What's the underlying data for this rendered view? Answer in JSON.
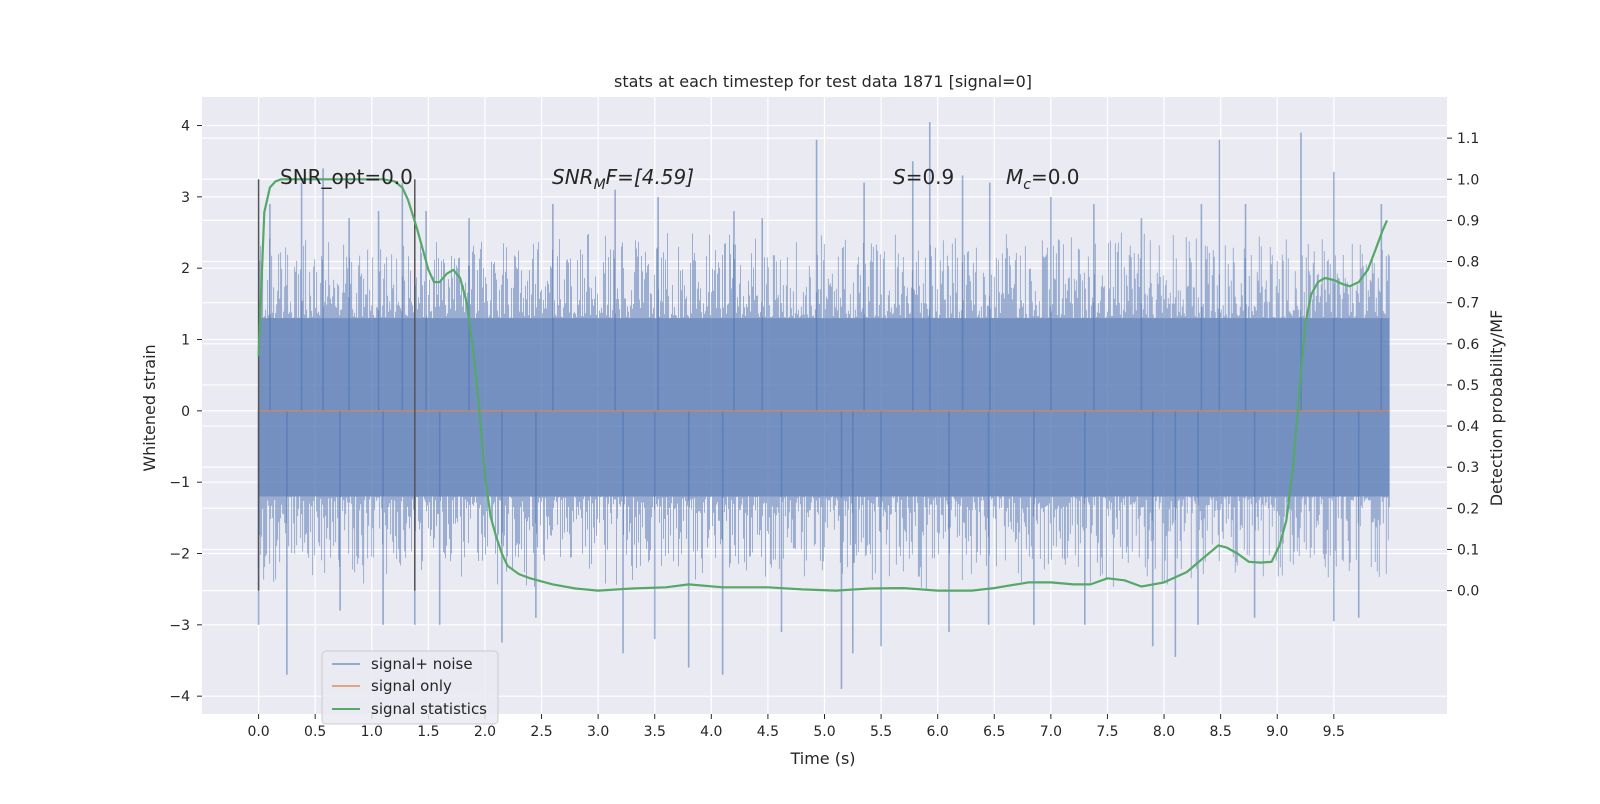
{
  "chart_data": {
    "type": "line",
    "title": "stats at each timestep for test data 1871 [signal=0]",
    "xlabel": "Time (s)",
    "ylabel": "Whitened strain",
    "ylabel_right": "Detection probability/MF",
    "xlim": [
      -0.5,
      10.5
    ],
    "ylim": [
      -4.25,
      4.4
    ],
    "ylim_right": [
      -0.3,
      1.2
    ],
    "x_ticks": [
      "0.0",
      "0.5",
      "1.0",
      "1.5",
      "2.0",
      "2.5",
      "3.0",
      "3.5",
      "4.0",
      "4.5",
      "5.0",
      "5.5",
      "6.0",
      "6.5",
      "7.0",
      "7.5",
      "8.0",
      "8.5",
      "9.0",
      "9.5"
    ],
    "y_ticks": [
      "4",
      "3",
      "2",
      "1",
      "0",
      "−1",
      "−2",
      "−3",
      "−4"
    ],
    "y2_ticks": [
      "1.1",
      "1.0",
      "0.9",
      "0.8",
      "0.7",
      "0.6",
      "0.5",
      "0.4",
      "0.3",
      "0.2",
      "0.1",
      "0.0"
    ],
    "grid": true,
    "legend_position": "lower-left",
    "colors": {
      "background": "#eaeaf2",
      "grid": "#ffffff",
      "noise": "#4c72b0",
      "signal_only": "#dd8452",
      "statistics": "#55a868",
      "markers": "#555555"
    },
    "annotations": {
      "snr_opt": "SNR_opt=0.0",
      "snr_mf_label": "SNR",
      "snr_mf_sub": "M",
      "snr_mf_rest": "F=[4.59]",
      "s_label": "S",
      "s_value": "=0.9",
      "mc_label": "M",
      "mc_sub": "c",
      "mc_value": "=0.0"
    },
    "markers_x": [
      0.0,
      1.38
    ],
    "series": [
      {
        "name": "signal+ noise",
        "axis": "left",
        "style": "dense-noise",
        "x_range": [
          0.0,
          9.99
        ],
        "envelope": [
          -2.0,
          2.1
        ],
        "peaks": [
          {
            "x": 0.57,
            "y": 3.4
          },
          {
            "x": 0.1,
            "y": 2.9
          },
          {
            "x": 0.38,
            "y": 3.2
          },
          {
            "x": 0.8,
            "y": 2.7
          },
          {
            "x": 1.27,
            "y": 3.2
          },
          {
            "x": 1.06,
            "y": 2.8
          },
          {
            "x": 1.48,
            "y": 2.8
          },
          {
            "x": 1.86,
            "y": 2.7
          },
          {
            "x": 2.6,
            "y": 2.9
          },
          {
            "x": 3.15,
            "y": 3.1
          },
          {
            "x": 3.53,
            "y": 3.0
          },
          {
            "x": 4.2,
            "y": 2.8
          },
          {
            "x": 4.45,
            "y": 2.7
          },
          {
            "x": 4.93,
            "y": 3.8
          },
          {
            "x": 5.35,
            "y": 3.2
          },
          {
            "x": 5.78,
            "y": 3.5
          },
          {
            "x": 5.93,
            "y": 4.05
          },
          {
            "x": 6.22,
            "y": 3.3
          },
          {
            "x": 6.46,
            "y": 3.2
          },
          {
            "x": 7.0,
            "y": 3.0
          },
          {
            "x": 7.38,
            "y": 2.9
          },
          {
            "x": 7.8,
            "y": 2.7
          },
          {
            "x": 8.33,
            "y": 2.9
          },
          {
            "x": 8.49,
            "y": 3.8
          },
          {
            "x": 8.72,
            "y": 2.9
          },
          {
            "x": 9.21,
            "y": 3.9
          },
          {
            "x": 9.5,
            "y": 3.35
          },
          {
            "x": 9.92,
            "y": 2.9
          },
          {
            "x": -0.0,
            "y": -3.0
          },
          {
            "x": 0.0,
            "y": -2.2
          },
          {
            "x": 0.25,
            "y": -3.7
          },
          {
            "x": 0.72,
            "y": -2.8
          },
          {
            "x": 1.1,
            "y": -3.0
          },
          {
            "x": 1.38,
            "y": -3.0
          },
          {
            "x": 1.6,
            "y": -3.0
          },
          {
            "x": 2.15,
            "y": -3.25
          },
          {
            "x": 2.45,
            "y": -2.9
          },
          {
            "x": 3.22,
            "y": -3.4
          },
          {
            "x": 3.5,
            "y": -3.2
          },
          {
            "x": 3.8,
            "y": -3.6
          },
          {
            "x": 4.1,
            "y": -3.7
          },
          {
            "x": 4.62,
            "y": -3.1
          },
          {
            "x": 5.15,
            "y": -3.9
          },
          {
            "x": 5.25,
            "y": -3.4
          },
          {
            "x": 5.5,
            "y": -3.3
          },
          {
            "x": 6.1,
            "y": -3.1
          },
          {
            "x": 6.45,
            "y": -3.0
          },
          {
            "x": 6.85,
            "y": -3.0
          },
          {
            "x": 7.3,
            "y": -3.0
          },
          {
            "x": 7.9,
            "y": -3.3
          },
          {
            "x": 8.1,
            "y": -3.45
          },
          {
            "x": 8.3,
            "y": -3.0
          },
          {
            "x": 8.8,
            "y": -2.9
          },
          {
            "x": 9.5,
            "y": -2.95
          },
          {
            "x": 9.72,
            "y": -2.9
          }
        ]
      },
      {
        "name": "signal only",
        "axis": "left",
        "x": [
          0.0,
          9.99
        ],
        "y": [
          0.0,
          0.0
        ]
      },
      {
        "name": "signal statistics",
        "axis": "right",
        "x": [
          0.0,
          0.05,
          0.1,
          0.15,
          0.2,
          0.3,
          0.5,
          0.8,
          1.1,
          1.2,
          1.27,
          1.32,
          1.4,
          1.45,
          1.5,
          1.55,
          1.6,
          1.66,
          1.72,
          1.78,
          1.84,
          1.9,
          1.95,
          2.0,
          2.05,
          2.1,
          2.15,
          2.2,
          2.3,
          2.4,
          2.6,
          2.8,
          3.0,
          3.3,
          3.6,
          3.8,
          4.1,
          4.5,
          4.8,
          5.1,
          5.4,
          5.7,
          6.0,
          6.3,
          6.5,
          6.8,
          7.0,
          7.2,
          7.35,
          7.5,
          7.65,
          7.8,
          8.0,
          8.2,
          8.35,
          8.48,
          8.55,
          8.65,
          8.75,
          8.85,
          8.95,
          9.02,
          9.08,
          9.14,
          9.2,
          9.25,
          9.3,
          9.36,
          9.42,
          9.5,
          9.58,
          9.64,
          9.72,
          9.8,
          9.87,
          9.93,
          9.97
        ],
        "y": [
          0.57,
          0.92,
          0.98,
          0.995,
          1.0,
          1.0,
          1.0,
          1.0,
          1.0,
          0.995,
          0.98,
          0.95,
          0.88,
          0.83,
          0.78,
          0.75,
          0.75,
          0.77,
          0.78,
          0.76,
          0.7,
          0.58,
          0.44,
          0.28,
          0.18,
          0.13,
          0.09,
          0.06,
          0.04,
          0.03,
          0.015,
          0.005,
          0.0,
          0.005,
          0.008,
          0.015,
          0.008,
          0.008,
          0.003,
          0.0,
          0.005,
          0.006,
          0.0,
          0.0,
          0.006,
          0.02,
          0.02,
          0.015,
          0.015,
          0.03,
          0.025,
          0.01,
          0.02,
          0.045,
          0.08,
          0.11,
          0.105,
          0.09,
          0.07,
          0.068,
          0.07,
          0.11,
          0.17,
          0.3,
          0.5,
          0.65,
          0.72,
          0.75,
          0.76,
          0.755,
          0.745,
          0.74,
          0.75,
          0.78,
          0.83,
          0.875,
          0.9
        ]
      }
    ]
  }
}
